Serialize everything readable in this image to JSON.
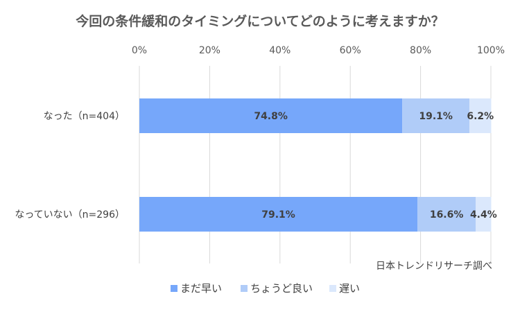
{
  "chart_data": {
    "type": "bar",
    "orientation": "horizontal",
    "stacked": true,
    "title": "今回の条件緩和のタイミングについてどのように考えますか？",
    "categories": [
      "なった（n=404）",
      "なっていない（n=296）"
    ],
    "series": [
      {
        "name": "まだ早い",
        "values": [
          74.8,
          79.1
        ],
        "labels": [
          "74.8%",
          "79.1%"
        ],
        "color": "#76a7fa"
      },
      {
        "name": "ちょうど良い",
        "values": [
          19.1,
          16.6
        ],
        "labels": [
          "19.1%",
          "16.6%"
        ],
        "color": "#b0ccf8"
      },
      {
        "name": "遅い",
        "values": [
          6.2,
          4.4
        ],
        "labels": [
          "6.2%",
          "4.4%"
        ],
        "color": "#dbe8fc"
      }
    ],
    "xlim": [
      0,
      100
    ],
    "xticks": [
      "0%",
      "20%",
      "40%",
      "60%",
      "80%",
      "100%"
    ],
    "grid": true,
    "legend_position": "bottom",
    "source": "日本トレンドリサーチ調べ"
  }
}
